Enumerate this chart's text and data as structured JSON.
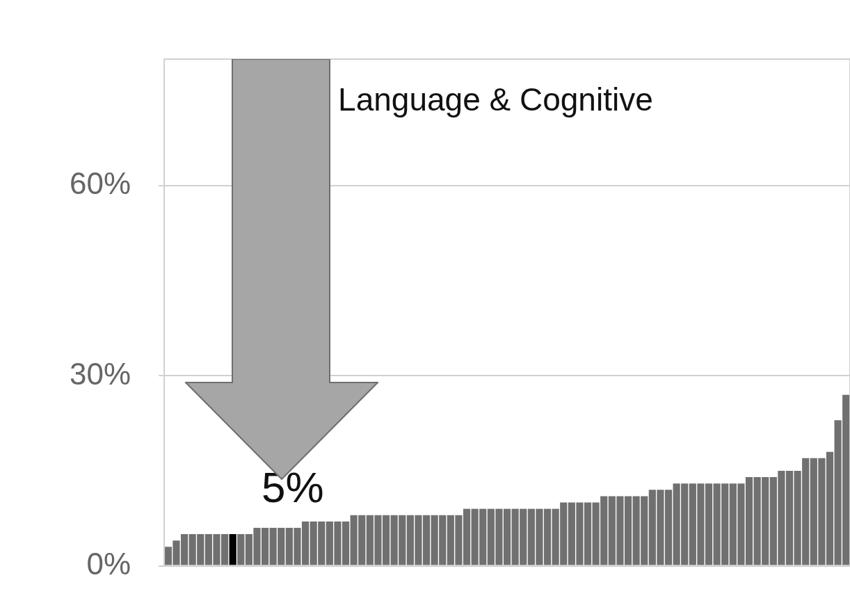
{
  "chart_data": {
    "type": "bar",
    "title": "Language & Cognitive",
    "categories": [
      null,
      null,
      null,
      null,
      null,
      null,
      null,
      null,
      null,
      null,
      null,
      null,
      null,
      null,
      null,
      null,
      null,
      null,
      null,
      null,
      null,
      null,
      null,
      null,
      null,
      null,
      null,
      null,
      null,
      null,
      null,
      null,
      null,
      null,
      null,
      null,
      null,
      null,
      null,
      null,
      null,
      null,
      null,
      null,
      null,
      null,
      null,
      null,
      null,
      null,
      null,
      null,
      null,
      null,
      null,
      null,
      null,
      null,
      null,
      null,
      null,
      null,
      null,
      null,
      null,
      null,
      null,
      null,
      null,
      null,
      null,
      null,
      null,
      null,
      null,
      null,
      null,
      null,
      null,
      null,
      null,
      null,
      null,
      null,
      null
    ],
    "values": [
      3,
      4,
      5,
      5,
      5,
      5,
      5,
      5,
      5,
      5,
      5,
      6,
      6,
      6,
      6,
      6,
      6,
      7,
      7,
      7,
      7,
      7,
      7,
      8,
      8,
      8,
      8,
      8,
      8,
      8,
      8,
      8,
      8,
      8,
      8,
      8,
      8,
      9,
      9,
      9,
      9,
      9,
      9,
      9,
      9,
      9,
      9,
      9,
      9,
      10,
      10,
      10,
      10,
      10,
      11,
      11,
      11,
      11,
      11,
      11,
      12,
      12,
      12,
      13,
      13,
      13,
      13,
      13,
      13,
      13,
      13,
      13,
      14,
      14,
      14,
      14,
      15,
      15,
      15,
      17,
      17,
      17,
      18,
      23,
      27
    ],
    "colors": [
      "#707070",
      "#707070",
      "#707070",
      "#707070",
      "#707070",
      "#707070",
      "#707070",
      "#707070",
      "#000000",
      "#707070",
      "#707070",
      "#707070",
      "#707070",
      "#707070",
      "#707070",
      "#707070",
      "#707070",
      "#707070",
      "#707070",
      "#707070",
      "#707070",
      "#707070",
      "#707070",
      "#707070",
      "#707070",
      "#707070",
      "#707070",
      "#707070",
      "#707070",
      "#707070",
      "#707070",
      "#707070",
      "#707070",
      "#707070",
      "#707070",
      "#707070",
      "#707070",
      "#707070",
      "#707070",
      "#707070",
      "#707070",
      "#707070",
      "#707070",
      "#707070",
      "#707070",
      "#707070",
      "#707070",
      "#707070",
      "#707070",
      "#707070",
      "#707070",
      "#707070",
      "#707070",
      "#707070",
      "#707070",
      "#707070",
      "#707070",
      "#707070",
      "#707070",
      "#707070",
      "#707070",
      "#707070",
      "#707070",
      "#707070",
      "#707070",
      "#707070",
      "#707070",
      "#707070",
      "#707070",
      "#707070",
      "#707070",
      "#707070",
      "#707070",
      "#707070",
      "#707070",
      "#707070",
      "#707070",
      "#707070",
      "#707070",
      "#707070",
      "#707070",
      "#707070",
      "#707070",
      "#707070",
      "#707070"
    ],
    "ylim": [
      0,
      80
    ],
    "yticks": [
      {
        "value": 0,
        "label": "0%"
      },
      {
        "value": 30,
        "label": "30%"
      },
      {
        "value": 60,
        "label": "60%"
      }
    ],
    "grid": "y",
    "legend": false,
    "tick_labels": "y",
    "annotations": [
      "5%"
    ]
  }
}
